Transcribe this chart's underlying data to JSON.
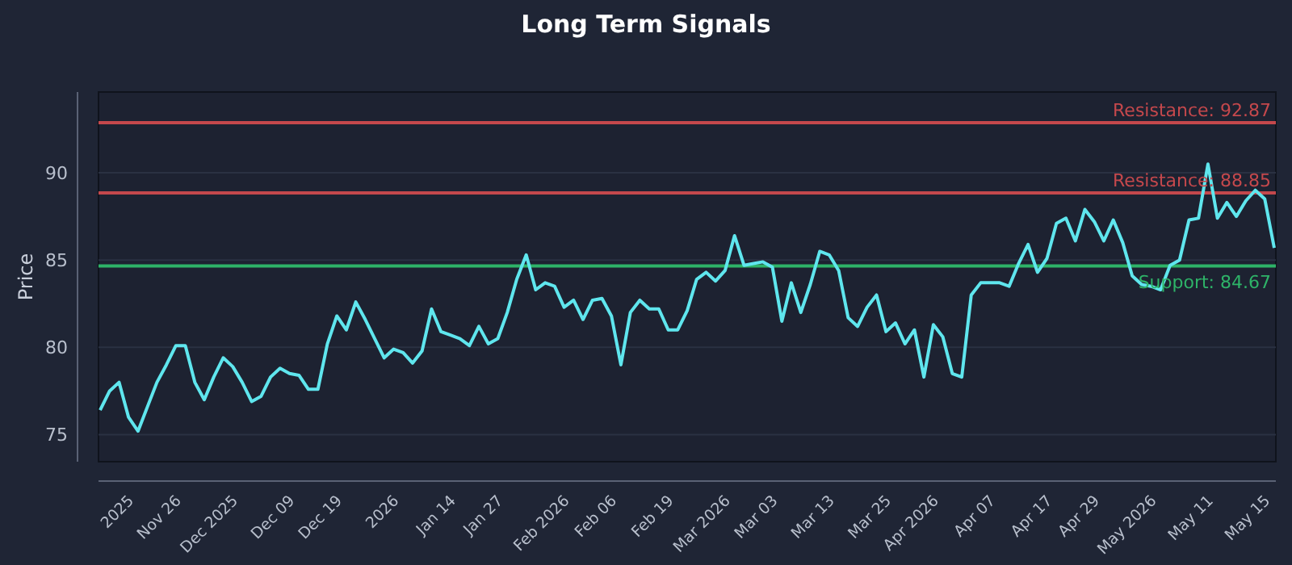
{
  "chart_data": {
    "type": "line",
    "title": "Long Term Signals",
    "ylabel": "Price",
    "categories": [
      null,
      null,
      null,
      "2025",
      null,
      null,
      null,
      null,
      "Nov 26",
      null,
      null,
      null,
      null,
      null,
      "Dec 2025",
      null,
      null,
      null,
      null,
      null,
      "Dec 09",
      null,
      null,
      null,
      null,
      "Dec 19",
      null,
      null,
      null,
      null,
      null,
      "2026",
      null,
      null,
      null,
      null,
      null,
      "Jan 14",
      null,
      null,
      null,
      null,
      "Jan 27",
      null,
      null,
      null,
      null,
      null,
      null,
      "Feb 2026",
      null,
      null,
      null,
      null,
      "Feb 06",
      null,
      null,
      null,
      null,
      null,
      "Feb 19",
      null,
      null,
      null,
      null,
      null,
      "Mar 2026",
      null,
      null,
      null,
      null,
      "Mar 03",
      null,
      null,
      null,
      null,
      null,
      "Mar 13",
      null,
      null,
      null,
      null,
      null,
      "Mar 25",
      null,
      null,
      null,
      null,
      "Apr 2026",
      null,
      null,
      null,
      null,
      null,
      "Apr 07",
      null,
      null,
      null,
      null,
      null,
      "Apr 17",
      null,
      null,
      null,
      null,
      "Apr 29",
      null,
      null,
      null,
      null,
      null,
      "May 2026",
      null,
      null,
      null,
      null,
      null,
      "May 11",
      null,
      null,
      null,
      null,
      null,
      "May 15",
      null
    ],
    "series": [
      {
        "color": "#5fe6ee",
        "values": [
          76.4,
          77.5,
          78.0,
          76.0,
          75.2,
          76.6,
          78.0,
          79.0,
          80.1,
          80.1,
          78.0,
          77.0,
          78.3,
          79.4,
          78.9,
          78.0,
          76.9,
          77.2,
          78.3,
          78.8,
          78.5,
          78.4,
          77.6,
          77.6,
          80.2,
          81.8,
          81.0,
          82.6,
          81.6,
          80.5,
          79.4,
          79.9,
          79.7,
          79.1,
          79.8,
          82.2,
          80.9,
          80.7,
          80.5,
          80.1,
          81.2,
          80.2,
          80.5,
          82.0,
          83.9,
          85.3,
          83.3,
          83.7,
          83.5,
          82.3,
          82.7,
          81.6,
          82.7,
          82.8,
          81.8,
          79.0,
          82.0,
          82.7,
          82.2,
          82.2,
          81.0,
          81.0,
          82.1,
          83.9,
          84.3,
          83.8,
          84.4,
          86.4,
          84.7,
          84.8,
          84.9,
          84.6,
          81.5,
          83.7,
          82.0,
          83.6,
          85.5,
          85.3,
          84.4,
          81.7,
          81.2,
          82.3,
          83.0,
          80.9,
          81.4,
          80.2,
          81.0,
          78.3,
          81.3,
          80.6,
          78.5,
          78.3,
          83.0,
          83.7,
          83.7,
          83.7,
          83.5,
          84.8,
          85.9,
          84.3,
          85.1,
          87.1,
          87.4,
          86.1,
          87.9,
          87.2,
          86.1,
          87.3,
          86.0,
          84.1,
          83.6,
          83.5,
          83.3,
          84.7,
          85.0,
          87.3,
          87.4,
          90.5,
          87.4,
          88.3,
          87.5,
          88.4,
          89.0,
          88.5,
          85.7
        ]
      }
    ],
    "ylim": [
      73.45,
      94.63
    ],
    "yticks": [
      75,
      80,
      85,
      90
    ],
    "grid": "y",
    "ref_lines": [
      {
        "axis": "y",
        "value": 92.87,
        "label": "Resistance: 92.87",
        "color": "#c4484c"
      },
      {
        "axis": "y",
        "value": 88.85,
        "label": "Resistance: 88.85",
        "color": "#c4484c"
      },
      {
        "axis": "y",
        "value": 84.67,
        "label": "Support: 84.67",
        "color": "#2eb368"
      }
    ]
  }
}
